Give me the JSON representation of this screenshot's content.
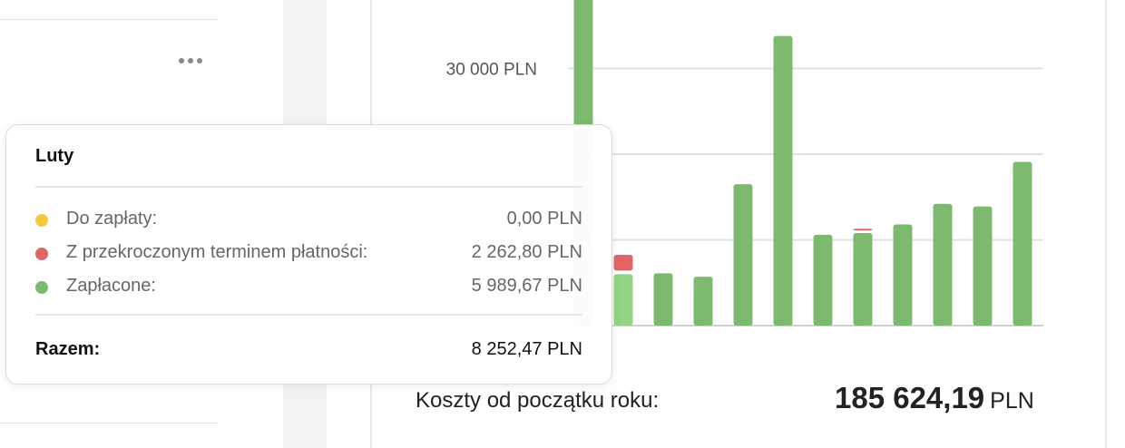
{
  "left_panel": {
    "more_icon": "more-horizontal-icon"
  },
  "chart_data": {
    "type": "bar",
    "stacked": true,
    "categories": [
      "",
      "Luty",
      "",
      "",
      "",
      "",
      "",
      "",
      "",
      "",
      "",
      ""
    ],
    "series": [
      {
        "name": "Zapłacone",
        "color": "#7dba6f",
        "values": [
          40000,
          5989.67,
          6100,
          5700,
          16500,
          33800,
          10600,
          10800,
          11800,
          14200,
          13900,
          19100
        ]
      },
      {
        "name": "Z przekroczonym terminem płatności",
        "color": "#e06666",
        "values": [
          400,
          2262.8,
          0,
          0,
          0,
          0,
          0,
          500,
          0,
          0,
          0,
          0
        ]
      },
      {
        "name": "Do zapłaty",
        "color": "#f5c842",
        "values": [
          0,
          0,
          0,
          0,
          0,
          0,
          0,
          0,
          0,
          0,
          0,
          0
        ]
      }
    ],
    "ytick_labels": [
      {
        "value": 30000,
        "label": "30 000 PLN"
      }
    ],
    "gridlines": [
      0,
      10000,
      20000,
      30000
    ],
    "ylim": [
      0,
      40000
    ],
    "grid": true
  },
  "summary": {
    "label": "Koszty od początku roku:",
    "value": "185 624,19",
    "currency": "PLN"
  },
  "tooltip": {
    "title": "Luty",
    "rows": [
      {
        "label": "Do zapłaty:",
        "value": "0,00 PLN",
        "color": "#f5c842"
      },
      {
        "label": "Z przekroczonym terminem płatności:",
        "value": "2 262,80 PLN",
        "color": "#e06666"
      },
      {
        "label": "Zapłacone:",
        "value": "5 989,67 PLN",
        "color": "#7dba6f"
      }
    ],
    "total_label": "Razem:",
    "total_value": "8 252,47 PLN"
  }
}
